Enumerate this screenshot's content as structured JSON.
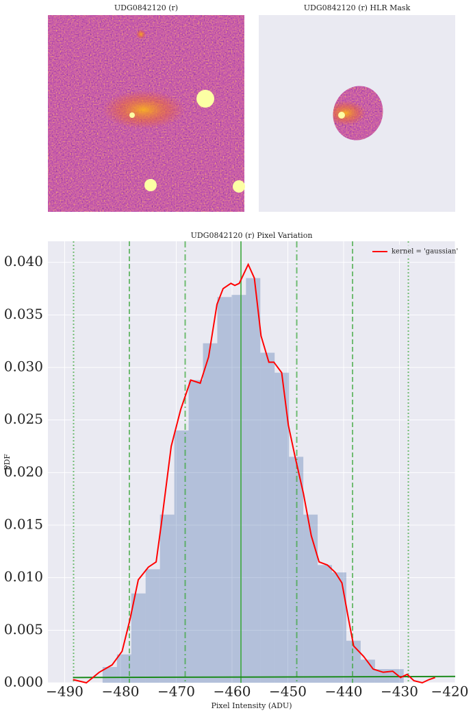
{
  "chart_data": [
    {
      "type": "image",
      "title": "UDG0842120 (r)",
      "masked": false
    },
    {
      "type": "image",
      "title": "UDG0842120 (r) HLR Mask",
      "masked": true
    },
    {
      "type": "histogram",
      "title": "UDG0842120 (r) Pixel Variation",
      "x_label": "Pixel Intensity (ADU)",
      "y_label": "PDF",
      "bins": [
        -483.2,
        -480.63,
        -478.06,
        -475.49,
        -472.92,
        -470.35,
        -467.78,
        -465.21,
        -462.64,
        -460.07,
        -457.5,
        -454.93,
        -452.36,
        -449.79,
        -447.22,
        -444.65,
        -442.08,
        -439.51,
        -436.94,
        -434.37,
        -431.8,
        -429.23
      ],
      "counts": [
        0.0015,
        0.0027,
        0.0085,
        0.0108,
        0.016,
        0.024,
        0.0288,
        0.0323,
        0.0367,
        0.0369,
        0.0385,
        0.0314,
        0.0295,
        0.0215,
        0.016,
        0.0112,
        0.0105,
        0.004,
        0.0022,
        0.0013,
        0.0013
      ],
      "color": "#4c72b0",
      "alpha": 0.35,
      "series": [
        {
          "name": "kernel = 'gaussian'",
          "color": "#ff0000",
          "x": [
            -488.5,
            -486.1,
            -483.8,
            -481.5,
            -479.7,
            -478.3,
            -476.8,
            -475.0,
            -473.6,
            -472.7,
            -470.9,
            -469.2,
            -467.4,
            -465.7,
            -464.2,
            -462.7,
            -461.6,
            -460.2,
            -459.5,
            -458.7,
            -457.1,
            -456.0,
            -454.8,
            -453.4,
            -452.5,
            -451.1,
            -449.9,
            -448.7,
            -447.2,
            -445.8,
            -444.4,
            -442.9,
            -441.5,
            -440.3,
            -439.1,
            -438.2,
            -436.4,
            -434.7,
            -432.9,
            -431.2,
            -429.8,
            -428.6,
            -427.4,
            -425.9,
            -424.7,
            -423.6
          ],
          "values": [
            0.0003,
            0.0,
            0.001,
            0.0017,
            0.003,
            0.006,
            0.0098,
            0.011,
            0.0115,
            0.015,
            0.0225,
            0.026,
            0.0288,
            0.0285,
            0.031,
            0.036,
            0.0375,
            0.038,
            0.0378,
            0.038,
            0.0398,
            0.0385,
            0.033,
            0.0305,
            0.0305,
            0.0295,
            0.0245,
            0.0215,
            0.018,
            0.014,
            0.0115,
            0.0112,
            0.0105,
            0.0095,
            0.006,
            0.0035,
            0.0025,
            0.0013,
            0.001,
            0.0011,
            0.0005,
            0.0008,
            0.0002,
            0.0,
            0.0003,
            0.0005
          ]
        }
      ],
      "baseline": {
        "color": "#1a8a1a",
        "x": [
          -488.5,
          -420
        ],
        "values": [
          0.0005,
          0.0006
        ]
      },
      "vlines": {
        "color": "#3aa63a",
        "x": [
          -488.4,
          -478.4,
          -468.4,
          -458.4,
          -448.4,
          -438.4,
          -428.4
        ],
        "styles": [
          "dotted",
          "dashed",
          "dashdot",
          "solid",
          "dashdot",
          "dashed",
          "dotted"
        ]
      },
      "xlim": [
        -493,
        -420
      ],
      "xticks": [
        {
          "value": -490,
          "label": "−490"
        },
        {
          "value": -480,
          "label": "−480"
        },
        {
          "value": -470,
          "label": "−470"
        },
        {
          "value": -460,
          "label": "−460"
        },
        {
          "value": -450,
          "label": "−450"
        },
        {
          "value": -440,
          "label": "−440"
        },
        {
          "value": -430,
          "label": "−430"
        },
        {
          "value": -420,
          "label": "−420"
        }
      ],
      "ylim": [
        0,
        0.042
      ],
      "yticks": [
        {
          "value": 0,
          "label": "0.000"
        },
        {
          "value": 0.005,
          "label": "0.005"
        },
        {
          "value": 0.01,
          "label": "0.010"
        },
        {
          "value": 0.015,
          "label": "0.015"
        },
        {
          "value": 0.02,
          "label": "0.020"
        },
        {
          "value": 0.025,
          "label": "0.025"
        },
        {
          "value": 0.03,
          "label": "0.030"
        },
        {
          "value": 0.035,
          "label": "0.035"
        },
        {
          "value": 0.04,
          "label": "0.040"
        }
      ],
      "grid": true,
      "legend": "upper right"
    }
  ]
}
